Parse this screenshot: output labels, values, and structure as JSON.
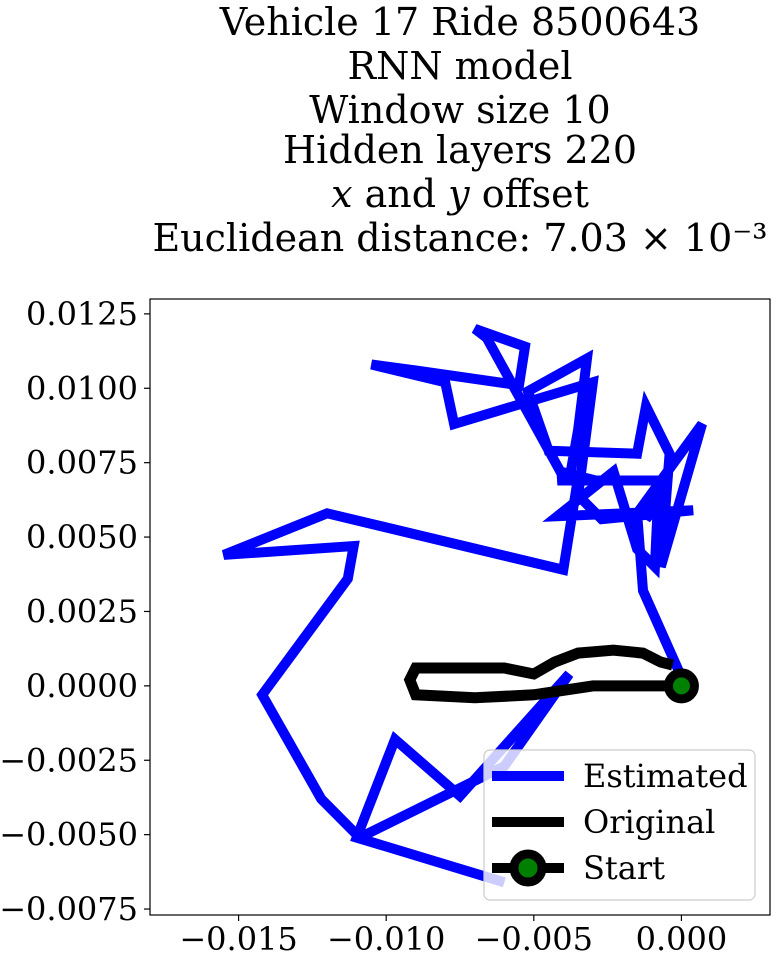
{
  "chart_data": {
    "type": "line",
    "title_lines": [
      "Vehicle 17 Ride 8500643",
      "RNN model",
      "Window size 10",
      "Hidden layers 220",
      "𝑥 and 𝑦 offset",
      "Euclidean distance: 7.03 × 10⁻³"
    ],
    "xlim": [
      -0.018,
      0.003
    ],
    "ylim": [
      -0.0077,
      0.013
    ],
    "xticks": [
      -0.015,
      -0.01,
      -0.005,
      0.0
    ],
    "xtick_labels": [
      "−0.015",
      "−0.010",
      "−0.005",
      "0.000"
    ],
    "yticks": [
      0.0125,
      0.01,
      0.0075,
      0.005,
      0.0025,
      0.0,
      -0.0025,
      -0.005,
      -0.0075
    ],
    "ytick_labels": [
      "0.0125",
      "0.0100",
      "0.0075",
      "0.0050",
      "0.0025",
      "0.0000",
      "−0.0025",
      "−0.0050",
      "−0.0075"
    ],
    "legend_position": "lower-right",
    "series": [
      {
        "name": "Estimated",
        "color": "#0000ff",
        "x": [
          0.0,
          -0.0013,
          -0.0015,
          0.0007,
          -0.0007,
          -0.0004,
          -0.0012,
          -0.0015,
          -0.0045,
          -0.0052,
          -0.0032,
          -0.0035,
          -0.0038,
          -0.0029,
          -0.0041,
          -0.0066,
          -0.007,
          -0.0053,
          -0.0055,
          -0.009,
          -0.0105,
          -0.008,
          -0.0077,
          -0.003,
          -0.0035,
          -0.0027,
          0.0004,
          -0.0042,
          -0.0023,
          -0.0015,
          -0.0009,
          -0.0008,
          -0.0012,
          -0.0006,
          -0.0042,
          -0.0035,
          -0.004,
          -0.012,
          -0.0155,
          -0.0111,
          -0.0113,
          -0.0142,
          -0.0122,
          -0.0109,
          -0.006,
          -0.0038,
          -0.0075,
          -0.0097,
          -0.011,
          -0.006
        ],
        "y": [
          0.0003,
          0.0032,
          0.0058,
          0.0088,
          0.004,
          0.0078,
          0.0094,
          0.0078,
          0.0079,
          0.0099,
          0.011,
          0.0086,
          0.0069,
          0.0069,
          0.0072,
          0.0117,
          0.012,
          0.0114,
          0.0101,
          0.0106,
          0.0108,
          0.0102,
          0.0088,
          0.0102,
          0.0064,
          0.0056,
          0.0059,
          0.0057,
          0.0072,
          0.0046,
          0.004,
          0.0061,
          0.0056,
          0.0069,
          0.0069,
          0.007,
          0.0039,
          0.0058,
          0.0044,
          0.0047,
          0.0036,
          -0.0003,
          -0.0038,
          -0.0051,
          -0.0027,
          0.0004,
          -0.0037,
          -0.0018,
          -0.0051,
          -0.0066
        ]
      },
      {
        "name": "Original",
        "color": "#000000",
        "x": [
          0.0,
          -0.001,
          -0.003,
          -0.005,
          -0.007,
          -0.009,
          -0.0092,
          -0.009,
          -0.008,
          -0.007,
          -0.006,
          -0.005,
          -0.0043,
          -0.0035,
          -0.0023,
          -0.0013,
          -0.0007,
          -0.0003
        ],
        "y": [
          0.0,
          0.0,
          0.0,
          -0.0003,
          -0.0004,
          -0.0003,
          0.0002,
          0.0006,
          0.0006,
          0.0006,
          0.0006,
          0.0004,
          0.0008,
          0.0011,
          0.0012,
          0.0011,
          0.0008,
          0.0007
        ]
      }
    ],
    "start_point": {
      "name": "Start",
      "x": 0.0,
      "y": 0.0,
      "edge_color": "#000000",
      "face_color": "#008000"
    }
  }
}
